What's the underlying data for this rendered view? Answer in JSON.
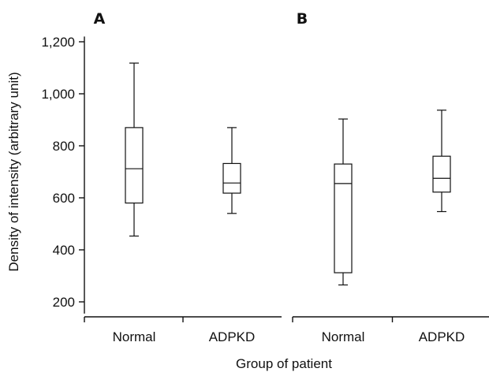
{
  "chart_data": {
    "type": "boxplot",
    "ylabel": "Density of intensity (arbitrary unit)",
    "xlabel": "Group of patient",
    "yticks": [
      200,
      400,
      600,
      800,
      1000,
      1200
    ],
    "ytick_labels": [
      "200",
      "400",
      "600",
      "800",
      "1,000",
      "1,200"
    ],
    "ylim": [
      155,
      1220
    ],
    "grid": false,
    "panels": [
      {
        "label": "A",
        "groups": [
          {
            "category": "Normal",
            "min": 453,
            "q1": 580,
            "median": 712,
            "q3": 870,
            "max": 1118
          },
          {
            "category": "ADPKD",
            "min": 540,
            "q1": 618,
            "median": 657,
            "q3": 732,
            "max": 870
          }
        ]
      },
      {
        "label": "B",
        "groups": [
          {
            "category": "Normal",
            "min": 265,
            "q1": 312,
            "median": 655,
            "q3": 730,
            "max": 903
          },
          {
            "category": "ADPKD",
            "min": 547,
            "q1": 622,
            "median": 675,
            "q3": 760,
            "max": 937
          }
        ]
      }
    ]
  }
}
